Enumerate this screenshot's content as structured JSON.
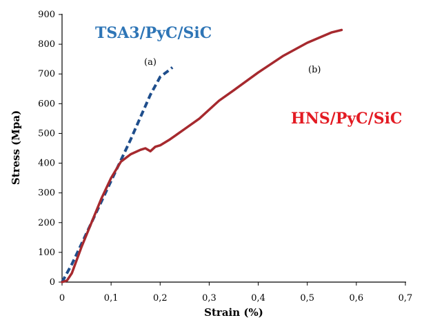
{
  "chart_data": {
    "type": "line",
    "xlabel": "Strain (%)",
    "ylabel": "Stress (Mpa)",
    "xlim": [
      0,
      0.7
    ],
    "ylim": [
      0,
      900
    ],
    "x_ticks": [
      "0",
      "0,1",
      "0,2",
      "0,3",
      "0,4",
      "0,5",
      "0,6",
      "0,7"
    ],
    "y_ticks": [
      "0",
      "100",
      "200",
      "300",
      "400",
      "500",
      "600",
      "700",
      "800",
      "900"
    ],
    "grid": false,
    "series": [
      {
        "tag": "(a)",
        "label": "TSA3/PyC/SiC",
        "color": "#1f4e8c",
        "label_color": "#2e75b6",
        "style": "dashed",
        "x": [
          0.0,
          0.02,
          0.04,
          0.06,
          0.08,
          0.1,
          0.12,
          0.14,
          0.16,
          0.18,
          0.2,
          0.22,
          0.225
        ],
        "y": [
          0,
          60,
          130,
          200,
          270,
          340,
          410,
          480,
          555,
          630,
          690,
          715,
          722
        ]
      },
      {
        "tag": "(b)",
        "label": "HNS/PyC/SiC",
        "color": "#a6292e",
        "label_color": "#e31b23",
        "style": "solid",
        "x": [
          0.0,
          0.01,
          0.02,
          0.04,
          0.06,
          0.08,
          0.1,
          0.12,
          0.14,
          0.16,
          0.17,
          0.18,
          0.19,
          0.2,
          0.22,
          0.25,
          0.28,
          0.3,
          0.32,
          0.35,
          0.4,
          0.45,
          0.5,
          0.55,
          0.57
        ],
        "y": [
          0,
          5,
          30,
          120,
          200,
          280,
          350,
          405,
          430,
          445,
          450,
          440,
          455,
          460,
          480,
          515,
          550,
          580,
          610,
          645,
          705,
          760,
          805,
          840,
          848
        ]
      }
    ]
  }
}
